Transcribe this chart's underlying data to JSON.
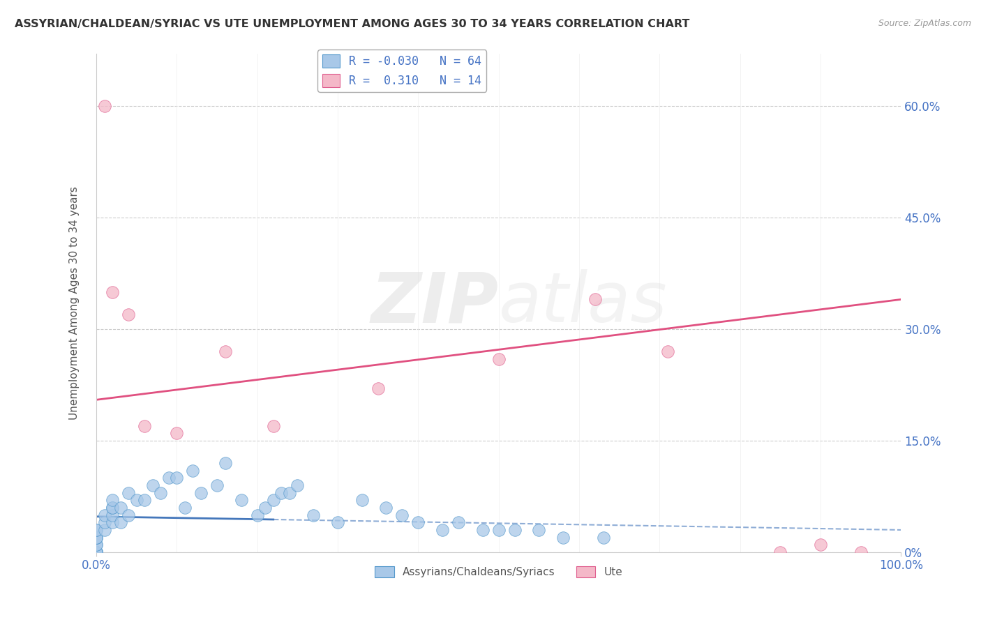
{
  "title": "ASSYRIAN/CHALDEAN/SYRIAC VS UTE UNEMPLOYMENT AMONG AGES 30 TO 34 YEARS CORRELATION CHART",
  "source": "Source: ZipAtlas.com",
  "ylabel_label": "Unemployment Among Ages 30 to 34 years",
  "legend_labels": [
    "Assyrians/Chaldeans/Syriacs",
    "Ute"
  ],
  "R_blue": -0.03,
  "N_blue": 64,
  "R_pink": 0.31,
  "N_pink": 14,
  "blue_color": "#a8c8e8",
  "pink_color": "#f4b8c8",
  "blue_edge_color": "#5599cc",
  "pink_edge_color": "#e06090",
  "blue_line_color": "#4477bb",
  "pink_line_color": "#e05080",
  "watermark_color": "#dddddd",
  "background_color": "#ffffff",
  "blue_scatter_x": [
    0.0,
    0.0,
    0.0,
    0.0,
    0.0,
    0.0,
    0.0,
    0.0,
    0.0,
    0.0,
    0.0,
    0.0,
    0.0,
    0.0,
    0.0,
    0.0,
    0.0,
    0.0,
    0.0,
    0.0,
    0.01,
    0.01,
    0.01,
    0.02,
    0.02,
    0.02,
    0.02,
    0.02,
    0.03,
    0.03,
    0.04,
    0.04,
    0.05,
    0.06,
    0.07,
    0.08,
    0.09,
    0.1,
    0.11,
    0.12,
    0.13,
    0.15,
    0.16,
    0.18,
    0.2,
    0.21,
    0.22,
    0.23,
    0.24,
    0.25,
    0.27,
    0.3,
    0.33,
    0.36,
    0.38,
    0.4,
    0.43,
    0.45,
    0.48,
    0.5,
    0.52,
    0.55,
    0.58,
    0.63
  ],
  "blue_scatter_y": [
    0.0,
    0.0,
    0.0,
    0.0,
    0.0,
    0.0,
    0.0,
    0.0,
    0.0,
    0.0,
    0.0,
    0.0,
    0.01,
    0.01,
    0.02,
    0.02,
    0.02,
    0.02,
    0.03,
    0.03,
    0.03,
    0.04,
    0.05,
    0.04,
    0.05,
    0.06,
    0.06,
    0.07,
    0.04,
    0.06,
    0.05,
    0.08,
    0.07,
    0.07,
    0.09,
    0.08,
    0.1,
    0.1,
    0.06,
    0.11,
    0.08,
    0.09,
    0.12,
    0.07,
    0.05,
    0.06,
    0.07,
    0.08,
    0.08,
    0.09,
    0.05,
    0.04,
    0.07,
    0.06,
    0.05,
    0.04,
    0.03,
    0.04,
    0.03,
    0.03,
    0.03,
    0.03,
    0.02,
    0.02
  ],
  "pink_scatter_x": [
    0.01,
    0.02,
    0.04,
    0.06,
    0.1,
    0.16,
    0.22,
    0.35,
    0.5,
    0.62,
    0.71,
    0.85,
    0.9,
    0.95
  ],
  "pink_scatter_y": [
    0.6,
    0.35,
    0.32,
    0.17,
    0.16,
    0.27,
    0.17,
    0.22,
    0.26,
    0.34,
    0.27,
    0.0,
    0.01,
    0.0
  ],
  "xlim": [
    0.0,
    1.0
  ],
  "ylim": [
    0.0,
    0.67
  ],
  "ytick_vals": [
    0.0,
    0.15,
    0.3,
    0.45,
    0.6
  ],
  "ytick_labels": [
    "0%",
    "15.0%",
    "30.0%",
    "45.0%",
    "60.0%"
  ],
  "xtick_vals": [
    0.0,
    1.0
  ],
  "xtick_labels": [
    "0.0%",
    "100.0%"
  ],
  "blue_trend_intercept": 0.048,
  "blue_trend_slope": -0.018,
  "pink_trend_intercept": 0.205,
  "pink_trend_slope": 0.135,
  "tick_label_color": "#4472c4",
  "ylabel_color": "#555555",
  "title_color": "#333333",
  "source_color": "#999999"
}
